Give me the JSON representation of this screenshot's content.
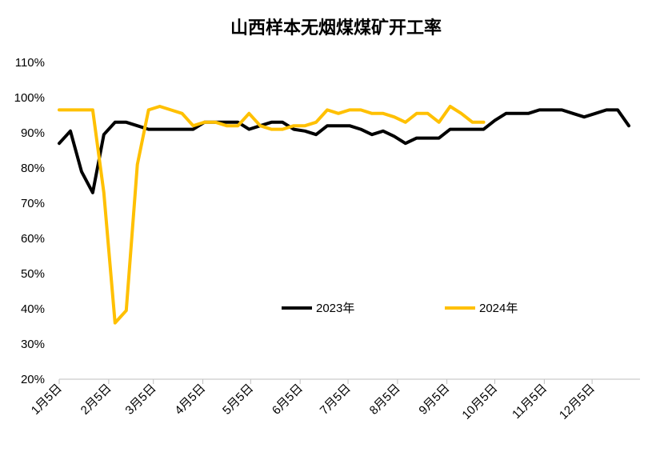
{
  "chart_data": {
    "type": "line",
    "title": "山西样本无烟煤煤矿开工率",
    "xlabel": "",
    "ylabel": "",
    "ylim": [
      20,
      110
    ],
    "y_ticks": [
      "110%",
      "100%",
      "90%",
      "80%",
      "70%",
      "60%",
      "50%",
      "40%",
      "30%",
      "20%"
    ],
    "x_ticks": [
      "1月5日",
      "2月5日",
      "3月5日",
      "4月5日",
      "5月5日",
      "6月5日",
      "7月5日",
      "8月5日",
      "9月5日",
      "10月5日",
      "11月5日",
      "12月5日"
    ],
    "x_unit": "week",
    "grid": false,
    "legend_position": "center",
    "series": [
      {
        "name": "2023年",
        "color": "#000000",
        "values": [
          87,
          90.5,
          79,
          73,
          89.5,
          93,
          93,
          92,
          91,
          91,
          91,
          91,
          91,
          93,
          93,
          93,
          93,
          91,
          92,
          93,
          93,
          91,
          90.5,
          89.5,
          92,
          92,
          92,
          91,
          89.5,
          90.5,
          89,
          87,
          88.5,
          88.5,
          88.5,
          91,
          91,
          91,
          91,
          93.5,
          95.5,
          95.5,
          95.5,
          96.5,
          96.5,
          96.5,
          95.5,
          94.5,
          95.5,
          96.5,
          96.5,
          92
        ]
      },
      {
        "name": "2024年",
        "color": "#FFC000",
        "values": [
          96.5,
          96.5,
          96.5,
          96.5,
          73,
          36,
          39.5,
          81,
          96.5,
          97.5,
          96.5,
          95.5,
          92,
          93,
          93,
          92,
          92,
          95.5,
          92,
          91,
          91,
          92,
          92,
          93,
          96.5,
          95.5,
          96.5,
          96.5,
          95.5,
          95.5,
          94.5,
          93,
          95.5,
          95.5,
          93,
          97.5,
          95.5,
          93,
          93
        ]
      }
    ]
  }
}
